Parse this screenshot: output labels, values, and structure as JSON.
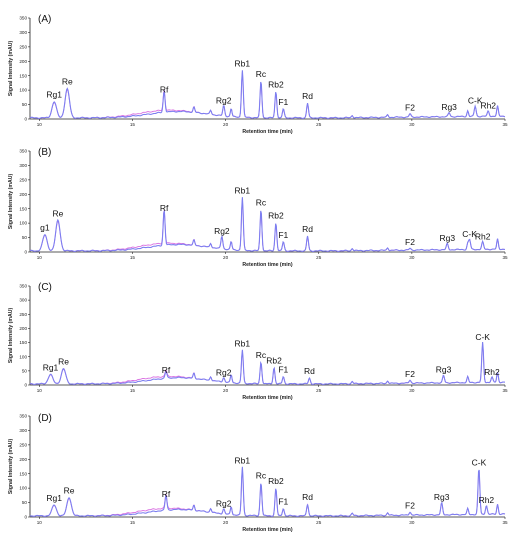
{
  "chart_data": [
    {
      "type": "line",
      "panel": "(A)",
      "ylabel": "Signal Intensity (mAU)",
      "xlabel": "Retention time (min)",
      "xlim": [
        9.5,
        35
      ],
      "ylim": [
        0,
        350
      ],
      "xticks": [
        "10",
        "15",
        "20",
        "25",
        "30",
        "35"
      ],
      "yticks": [
        "0",
        "50",
        "100",
        "150",
        "200",
        "250",
        "300",
        "350"
      ],
      "peaks": [
        {
          "label": "Rg1",
          "x": 10.8,
          "y": 60
        },
        {
          "label": "Re",
          "x": 11.5,
          "y": 105
        },
        {
          "label": "Rf",
          "x": 16.7,
          "y": 78
        },
        {
          "label": "Rg2",
          "x": 19.9,
          "y": 40
        },
        {
          "label": "Rb1",
          "x": 20.9,
          "y": 168
        },
        {
          "label": "Rc",
          "x": 21.9,
          "y": 132
        },
        {
          "label": "Rb2",
          "x": 22.7,
          "y": 96
        },
        {
          "label": "F1",
          "x": 23.1,
          "y": 35
        },
        {
          "label": "Rd",
          "x": 24.4,
          "y": 55
        },
        {
          "label": "F2",
          "x": 29.9,
          "y": 15
        },
        {
          "label": "Rg3",
          "x": 32.0,
          "y": 18
        },
        {
          "label": "C-K",
          "x": 33.4,
          "y": 40
        },
        {
          "label": "Rh2",
          "x": 34.1,
          "y": 22
        }
      ]
    },
    {
      "type": "line",
      "panel": "(B)",
      "ylabel": "Signal Intensity (mAU)",
      "xlabel": "Retention time (min)",
      "xlim": [
        9.5,
        35
      ],
      "ylim": [
        0,
        350
      ],
      "xticks": [
        "10",
        "15",
        "20",
        "25",
        "30",
        "35"
      ],
      "yticks": [
        "0",
        "50",
        "100",
        "150",
        "200",
        "250",
        "300",
        "350"
      ],
      "peaks": [
        {
          "label": "g1",
          "x": 10.3,
          "y": 60
        },
        {
          "label": "Re",
          "x": 11.0,
          "y": 110
        },
        {
          "label": "Rf",
          "x": 16.7,
          "y": 128
        },
        {
          "label": "Rg2",
          "x": 19.8,
          "y": 48
        },
        {
          "label": "Rb1",
          "x": 20.9,
          "y": 188
        },
        {
          "label": "Rc",
          "x": 21.9,
          "y": 148
        },
        {
          "label": "Rb2",
          "x": 22.7,
          "y": 102
        },
        {
          "label": "F1",
          "x": 23.1,
          "y": 35
        },
        {
          "label": "Rd",
          "x": 24.4,
          "y": 55
        },
        {
          "label": "F2",
          "x": 29.9,
          "y": 10
        },
        {
          "label": "Rg3",
          "x": 31.9,
          "y": 25
        },
        {
          "label": "C-K",
          "x": 33.1,
          "y": 38
        },
        {
          "label": "Rh2",
          "x": 33.8,
          "y": 30
        }
      ]
    },
    {
      "type": "line",
      "panel": "(C)",
      "ylabel": "Signal Intensity (mAU)",
      "xlabel": "Retention time (min)",
      "xlim": [
        9.5,
        35
      ],
      "ylim": [
        0,
        350
      ],
      "xticks": [
        "10",
        "15",
        "20",
        "25",
        "30",
        "35"
      ],
      "yticks": [
        "0",
        "50",
        "100",
        "150",
        "200",
        "250",
        "300",
        "350"
      ],
      "peaks": [
        {
          "label": "Rg1",
          "x": 10.6,
          "y": 38
        },
        {
          "label": "Re",
          "x": 11.3,
          "y": 58
        },
        {
          "label": "Rf",
          "x": 16.8,
          "y": 28
        },
        {
          "label": "Rg2",
          "x": 19.9,
          "y": 20
        },
        {
          "label": "Rb1",
          "x": 20.9,
          "y": 122
        },
        {
          "label": "Rc",
          "x": 21.9,
          "y": 82
        },
        {
          "label": "Rb2",
          "x": 22.6,
          "y": 62
        },
        {
          "label": "F1",
          "x": 23.1,
          "y": 30
        },
        {
          "label": "Rd",
          "x": 24.5,
          "y": 25
        },
        {
          "label": "F2",
          "x": 29.9,
          "y": 15
        },
        {
          "label": "Rg3",
          "x": 31.7,
          "y": 30
        },
        {
          "label": "C-K",
          "x": 33.8,
          "y": 145
        },
        {
          "label": "Rh2",
          "x": 34.3,
          "y": 22
        }
      ]
    },
    {
      "type": "line",
      "panel": "(D)",
      "ylabel": "Signal Intensity (mAU)",
      "xlabel": "Retention time (min)",
      "xlim": [
        9.5,
        35
      ],
      "ylim": [
        0,
        350
      ],
      "xticks": [
        "10",
        "15",
        "20",
        "25",
        "30",
        "35"
      ],
      "yticks": [
        "0",
        "50",
        "100",
        "150",
        "200",
        "250",
        "300",
        "350"
      ],
      "peaks": [
        {
          "label": "Rg1",
          "x": 10.8,
          "y": 42
        },
        {
          "label": "Re",
          "x": 11.6,
          "y": 68
        },
        {
          "label": "Rf",
          "x": 16.8,
          "y": 55
        },
        {
          "label": "Rg2",
          "x": 19.9,
          "y": 22
        },
        {
          "label": "Rb1",
          "x": 20.9,
          "y": 172
        },
        {
          "label": "Rc",
          "x": 21.9,
          "y": 120
        },
        {
          "label": "Rb2",
          "x": 22.7,
          "y": 100
        },
        {
          "label": "F1",
          "x": 23.1,
          "y": 30
        },
        {
          "label": "Rd",
          "x": 24.4,
          "y": 45
        },
        {
          "label": "F2",
          "x": 29.9,
          "y": 15
        },
        {
          "label": "Rg3",
          "x": 31.6,
          "y": 45
        },
        {
          "label": "C-K",
          "x": 33.6,
          "y": 165
        },
        {
          "label": "Rh2",
          "x": 34.0,
          "y": 35
        }
      ]
    }
  ]
}
